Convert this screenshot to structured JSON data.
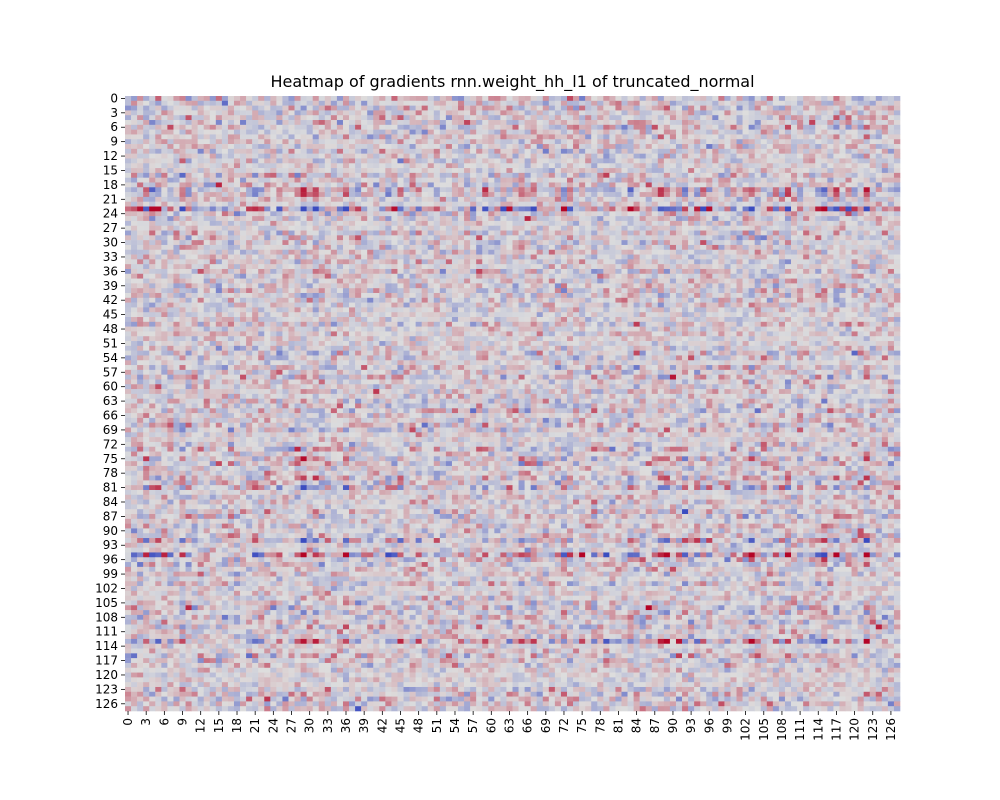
{
  "chart_data": {
    "type": "heatmap",
    "title": "Heatmap of gradients rnn.weight_hh_l1 of truncated_normal",
    "xlabel": "",
    "ylabel": "",
    "rows": 128,
    "cols": 128,
    "colormap": "coolwarm",
    "colorbar": false,
    "grid": false,
    "colors": {
      "negative": "#3b4cc0",
      "neutral": "#dddddd",
      "positive": "#b40426"
    },
    "x_tick_labels": [
      "0",
      "3",
      "6",
      "9",
      "12",
      "15",
      "18",
      "21",
      "24",
      "27",
      "30",
      "33",
      "36",
      "39",
      "42",
      "45",
      "48",
      "51",
      "54",
      "57",
      "60",
      "63",
      "66",
      "69",
      "72",
      "75",
      "78",
      "81",
      "84",
      "87",
      "90",
      "93",
      "96",
      "99",
      "102",
      "105",
      "108",
      "111",
      "114",
      "117",
      "120",
      "123",
      "126"
    ],
    "y_tick_labels": [
      "0",
      "3",
      "6",
      "9",
      "12",
      "15",
      "18",
      "21",
      "24",
      "27",
      "30",
      "33",
      "36",
      "39",
      "42",
      "45",
      "48",
      "51",
      "54",
      "57",
      "60",
      "63",
      "66",
      "69",
      "72",
      "75",
      "78",
      "81",
      "84",
      "87",
      "90",
      "93",
      "96",
      "99",
      "102",
      "105",
      "108",
      "111",
      "114",
      "117",
      "120",
      "123",
      "126"
    ],
    "value_range": [
      -1,
      1
    ],
    "strong_rows": [
      {
        "row": 19,
        "amplitude": 0.5
      },
      {
        "row": 20,
        "amplitude": 0.45
      },
      {
        "row": 23,
        "amplitude": 0.95
      },
      {
        "row": 41,
        "amplitude": 0.3
      },
      {
        "row": 75,
        "amplitude": 0.4
      },
      {
        "row": 79,
        "amplitude": 0.4
      },
      {
        "row": 81,
        "amplitude": 0.5
      },
      {
        "row": 92,
        "amplitude": 0.55
      },
      {
        "row": 95,
        "amplitude": 0.8
      },
      {
        "row": 107,
        "amplitude": 0.35
      },
      {
        "row": 113,
        "amplitude": 0.6
      }
    ],
    "base_amplitude": 0.28
  }
}
